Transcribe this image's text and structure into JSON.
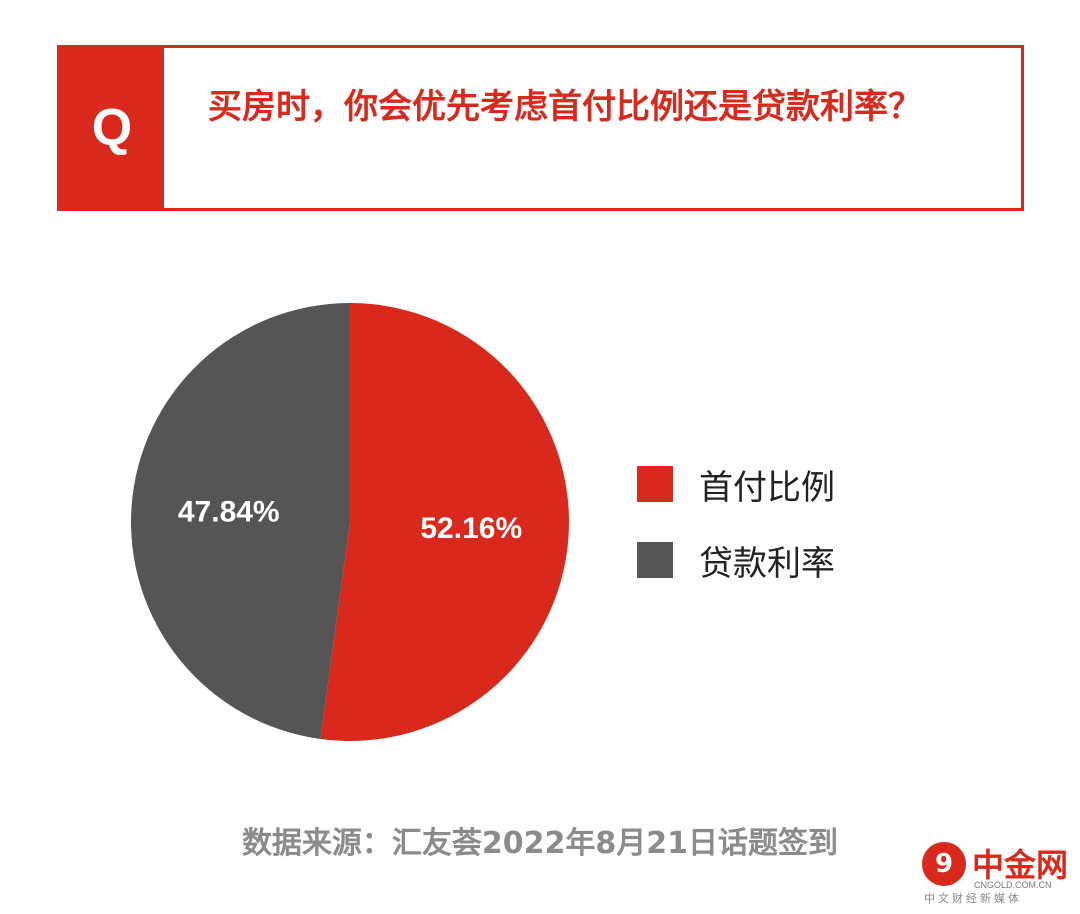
{
  "question": {
    "badge": "Q",
    "text": "买房时，你会优先考虑首付比例还是贷款利率？"
  },
  "chart_data": {
    "type": "pie",
    "title": "",
    "categories": [
      "首付比例",
      "贷款利率"
    ],
    "values": [
      52.16,
      47.84
    ],
    "labels": [
      "52.16%",
      "47.84%"
    ],
    "colors": [
      "#d9291c",
      "#555555"
    ],
    "legend_position": "right"
  },
  "footer": {
    "source": "数据来源：汇友荟2022年8月21日话题签到"
  },
  "watermark": {
    "mark": "9",
    "name": "中金网",
    "url": "CNGOLD.COM.CN",
    "tagline": "中文财经新媒体"
  }
}
